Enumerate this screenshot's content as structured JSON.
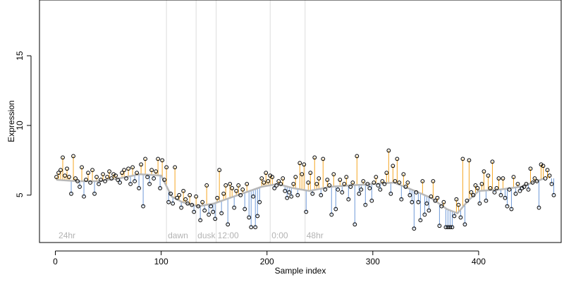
{
  "chart_data": {
    "type": "scatter",
    "title": "",
    "xlabel": "Sample index",
    "ylabel": "Expression",
    "xlim": [
      -15,
      478
    ],
    "ylim": [
      1.6,
      19.0
    ],
    "x_ticks": [
      0,
      100,
      200,
      300,
      400
    ],
    "y_ticks": [
      5,
      10,
      15
    ],
    "grid": false,
    "legend": null,
    "colors": {
      "point_outline": "#000000",
      "up_segment": "#f5a623",
      "down_segment": "#6f9ad8",
      "smooth_line": "#b8b8b8",
      "region_line": "#dddddd",
      "region_text": "#b3b3b3"
    },
    "region_markers": [
      {
        "x": 105,
        "label": "dawn"
      },
      {
        "x": 133,
        "label": "dusk"
      },
      {
        "x": 152,
        "label": "12:00"
      },
      {
        "x": 203,
        "label": "0:00"
      },
      {
        "x": 236,
        "label": "48hr"
      }
    ],
    "region_labels": [
      {
        "x": 3,
        "label": "24hr"
      }
    ],
    "smooth_trend": {
      "x": [
        1,
        20,
        40,
        60,
        80,
        100,
        110,
        120,
        135,
        150,
        165,
        180,
        195,
        210,
        225,
        240,
        260,
        280,
        300,
        320,
        340,
        355,
        370,
        380,
        390,
        400,
        420,
        440,
        462
      ],
      "y": [
        6.1,
        6.0,
        6.0,
        6.2,
        6.5,
        6.4,
        4.9,
        4.5,
        4.2,
        4.4,
        4.8,
        5.2,
        5.6,
        5.8,
        5.5,
        5.3,
        5.6,
        5.7,
        5.8,
        5.9,
        5.3,
        4.8,
        4.0,
        3.7,
        4.6,
        5.3,
        5.4,
        5.6,
        6.2
      ]
    },
    "points": [
      [
        1,
        6.3
      ],
      [
        3,
        6.6
      ],
      [
        5,
        6.8
      ],
      [
        7,
        7.7
      ],
      [
        9,
        6.4
      ],
      [
        11,
        6.9
      ],
      [
        13,
        6.3
      ],
      [
        15,
        5.1
      ],
      [
        17,
        7.8
      ],
      [
        19,
        6.2
      ],
      [
        21,
        6.0
      ],
      [
        23,
        5.6
      ],
      [
        25,
        7.0
      ],
      [
        27,
        4.9
      ],
      [
        29,
        6.1
      ],
      [
        31,
        6.6
      ],
      [
        33,
        5.9
      ],
      [
        35,
        6.8
      ],
      [
        37,
        5.1
      ],
      [
        39,
        6.3
      ],
      [
        41,
        5.8
      ],
      [
        43,
        6.1
      ],
      [
        45,
        6.5
      ],
      [
        47,
        6.0
      ],
      [
        49,
        6.3
      ],
      [
        51,
        6.7
      ],
      [
        53,
        6.2
      ],
      [
        55,
        6.5
      ],
      [
        57,
        6.4
      ],
      [
        59,
        6.1
      ],
      [
        61,
        5.9
      ],
      [
        63,
        6.6
      ],
      [
        65,
        6.8
      ],
      [
        67,
        6.2
      ],
      [
        69,
        6.9
      ],
      [
        71,
        5.8
      ],
      [
        73,
        7.0
      ],
      [
        75,
        6.0
      ],
      [
        77,
        6.6
      ],
      [
        79,
        5.5
      ],
      [
        81,
        7.2
      ],
      [
        83,
        4.2
      ],
      [
        85,
        7.6
      ],
      [
        87,
        6.3
      ],
      [
        89,
        5.8
      ],
      [
        91,
        6.8
      ],
      [
        93,
        6.2
      ],
      [
        95,
        6.7
      ],
      [
        97,
        7.6
      ],
      [
        99,
        5.5
      ],
      [
        101,
        7.5
      ],
      [
        103,
        6.1
      ],
      [
        105,
        7.0
      ],
      [
        107,
        4.5
      ],
      [
        109,
        5.1
      ],
      [
        111,
        4.4
      ],
      [
        113,
        7.0
      ],
      [
        115,
        4.8
      ],
      [
        117,
        5.0
      ],
      [
        119,
        4.1
      ],
      [
        121,
        5.3
      ],
      [
        123,
        4.7
      ],
      [
        125,
        4.4
      ],
      [
        127,
        5.0
      ],
      [
        129,
        4.3
      ],
      [
        131,
        3.8
      ],
      [
        133,
        4.9
      ],
      [
        135,
        4.2
      ],
      [
        137,
        3.2
      ],
      [
        139,
        4.5
      ],
      [
        141,
        3.9
      ],
      [
        143,
        5.7
      ],
      [
        145,
        3.6
      ],
      [
        147,
        4.2
      ],
      [
        149,
        3.8
      ],
      [
        151,
        3.3
      ],
      [
        153,
        4.8
      ],
      [
        155,
        6.8
      ],
      [
        157,
        3.7
      ],
      [
        159,
        5.1
      ],
      [
        161,
        5.7
      ],
      [
        163,
        2.9
      ],
      [
        165,
        5.8
      ],
      [
        167,
        5.5
      ],
      [
        169,
        4.1
      ],
      [
        171,
        5.3
      ],
      [
        173,
        5.7
      ],
      [
        175,
        5.0
      ],
      [
        177,
        5.4
      ],
      [
        179,
        4.0
      ],
      [
        181,
        5.8
      ],
      [
        183,
        3.4
      ],
      [
        185,
        2.7
      ],
      [
        187,
        4.9
      ],
      [
        189,
        2.7
      ],
      [
        191,
        3.5
      ],
      [
        193,
        4.5
      ],
      [
        195,
        6.2
      ],
      [
        197,
        5.9
      ],
      [
        199,
        6.6
      ],
      [
        201,
        6.0
      ],
      [
        203,
        6.4
      ],
      [
        205,
        6.3
      ],
      [
        207,
        5.5
      ],
      [
        209,
        5.7
      ],
      [
        211,
        6.0
      ],
      [
        213,
        5.8
      ],
      [
        215,
        6.2
      ],
      [
        217,
        5.3
      ],
      [
        219,
        4.8
      ],
      [
        221,
        5.2
      ],
      [
        223,
        4.9
      ],
      [
        225,
        5.8
      ],
      [
        227,
        6.3
      ],
      [
        229,
        5.0
      ],
      [
        231,
        7.3
      ],
      [
        233,
        6.5
      ],
      [
        235,
        7.2
      ],
      [
        237,
        3.8
      ],
      [
        239,
        5.9
      ],
      [
        241,
        6.6
      ],
      [
        243,
        5.1
      ],
      [
        245,
        7.7
      ],
      [
        247,
        5.8
      ],
      [
        249,
        6.2
      ],
      [
        251,
        5.0
      ],
      [
        253,
        7.6
      ],
      [
        255,
        5.4
      ],
      [
        257,
        6.1
      ],
      [
        259,
        5.7
      ],
      [
        261,
        3.6
      ],
      [
        263,
        6.5
      ],
      [
        265,
        4.0
      ],
      [
        267,
        5.4
      ],
      [
        269,
        6.1
      ],
      [
        271,
        5.2
      ],
      [
        273,
        5.8
      ],
      [
        275,
        6.3
      ],
      [
        277,
        4.7
      ],
      [
        279,
        5.6
      ],
      [
        281,
        5.9
      ],
      [
        283,
        2.9
      ],
      [
        285,
        7.8
      ],
      [
        287,
        5.1
      ],
      [
        289,
        5.4
      ],
      [
        291,
        6.0
      ],
      [
        293,
        4.3
      ],
      [
        295,
        5.8
      ],
      [
        297,
        5.5
      ],
      [
        299,
        4.6
      ],
      [
        301,
        5.9
      ],
      [
        303,
        6.3
      ],
      [
        305,
        5.7
      ],
      [
        307,
        5.4
      ],
      [
        309,
        6.0
      ],
      [
        311,
        5.8
      ],
      [
        313,
        6.6
      ],
      [
        315,
        8.2
      ],
      [
        317,
        5.1
      ],
      [
        319,
        7.1
      ],
      [
        321,
        6.0
      ],
      [
        323,
        7.6
      ],
      [
        325,
        5.9
      ],
      [
        327,
        4.7
      ],
      [
        329,
        6.5
      ],
      [
        331,
        5.6
      ],
      [
        333,
        5.9
      ],
      [
        335,
        5.0
      ],
      [
        337,
        4.5
      ],
      [
        339,
        2.6
      ],
      [
        341,
        5.2
      ],
      [
        343,
        4.5
      ],
      [
        345,
        3.2
      ],
      [
        347,
        6.0
      ],
      [
        349,
        3.6
      ],
      [
        351,
        4.4
      ],
      [
        353,
        3.9
      ],
      [
        355,
        4.9
      ],
      [
        357,
        6.0
      ],
      [
        359,
        4.6
      ],
      [
        361,
        4.8
      ],
      [
        363,
        2.8
      ],
      [
        365,
        4.2
      ],
      [
        367,
        4.5
      ],
      [
        369,
        2.7
      ],
      [
        371,
        2.7
      ],
      [
        373,
        2.7
      ],
      [
        375,
        2.7
      ],
      [
        377,
        3.5
      ],
      [
        379,
        4.7
      ],
      [
        381,
        4.3
      ],
      [
        383,
        3.4
      ],
      [
        385,
        7.6
      ],
      [
        387,
        2.9
      ],
      [
        389,
        4.6
      ],
      [
        391,
        7.5
      ],
      [
        393,
        5.2
      ],
      [
        395,
        5.0
      ],
      [
        397,
        5.7
      ],
      [
        399,
        5.5
      ],
      [
        401,
        4.4
      ],
      [
        403,
        5.8
      ],
      [
        405,
        6.7
      ],
      [
        407,
        4.6
      ],
      [
        409,
        6.4
      ],
      [
        411,
        5.5
      ],
      [
        413,
        7.4
      ],
      [
        415,
        5.2
      ],
      [
        417,
        5.5
      ],
      [
        419,
        6.2
      ],
      [
        421,
        5.0
      ],
      [
        423,
        6.2
      ],
      [
        425,
        4.8
      ],
      [
        427,
        4.2
      ],
      [
        429,
        5.4
      ],
      [
        431,
        4.0
      ],
      [
        433,
        6.3
      ],
      [
        435,
        5.1
      ],
      [
        437,
        5.8
      ],
      [
        439,
        5.3
      ],
      [
        441,
        5.5
      ],
      [
        443,
        5.6
      ],
      [
        445,
        5.8
      ],
      [
        447,
        5.4
      ],
      [
        449,
        6.9
      ],
      [
        451,
        5.9
      ],
      [
        453,
        6.2
      ],
      [
        455,
        6.0
      ],
      [
        457,
        4.1
      ],
      [
        459,
        7.2
      ],
      [
        461,
        7.1
      ],
      [
        463,
        6.2
      ],
      [
        465,
        6.8
      ],
      [
        467,
        6.4
      ],
      [
        469,
        5.8
      ],
      [
        471,
        5.0
      ]
    ]
  }
}
